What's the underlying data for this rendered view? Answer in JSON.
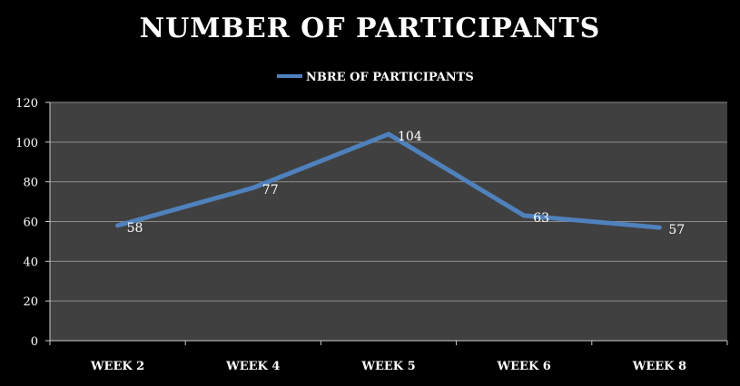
{
  "chart_data": {
    "type": "line",
    "title": "NUMBER OF PARTICIPANTS",
    "categories": [
      "WEEK 2",
      "WEEK 4",
      "WEEK 5",
      "WEEK 6",
      "WEEK 8"
    ],
    "series": [
      {
        "name": "NBRE OF PARTICIPANTS",
        "values": [
          58,
          77,
          104,
          63,
          57
        ]
      }
    ],
    "ylim": [
      0,
      120
    ],
    "yticks": [
      "0",
      "20",
      "40",
      "60",
      "80",
      "100",
      "120"
    ],
    "grid": true,
    "legend": "top",
    "colors": {
      "line": "#4f81bd",
      "plot_bg": "#404040",
      "grid": "#8c8c8c",
      "text": "#ffffff"
    }
  }
}
